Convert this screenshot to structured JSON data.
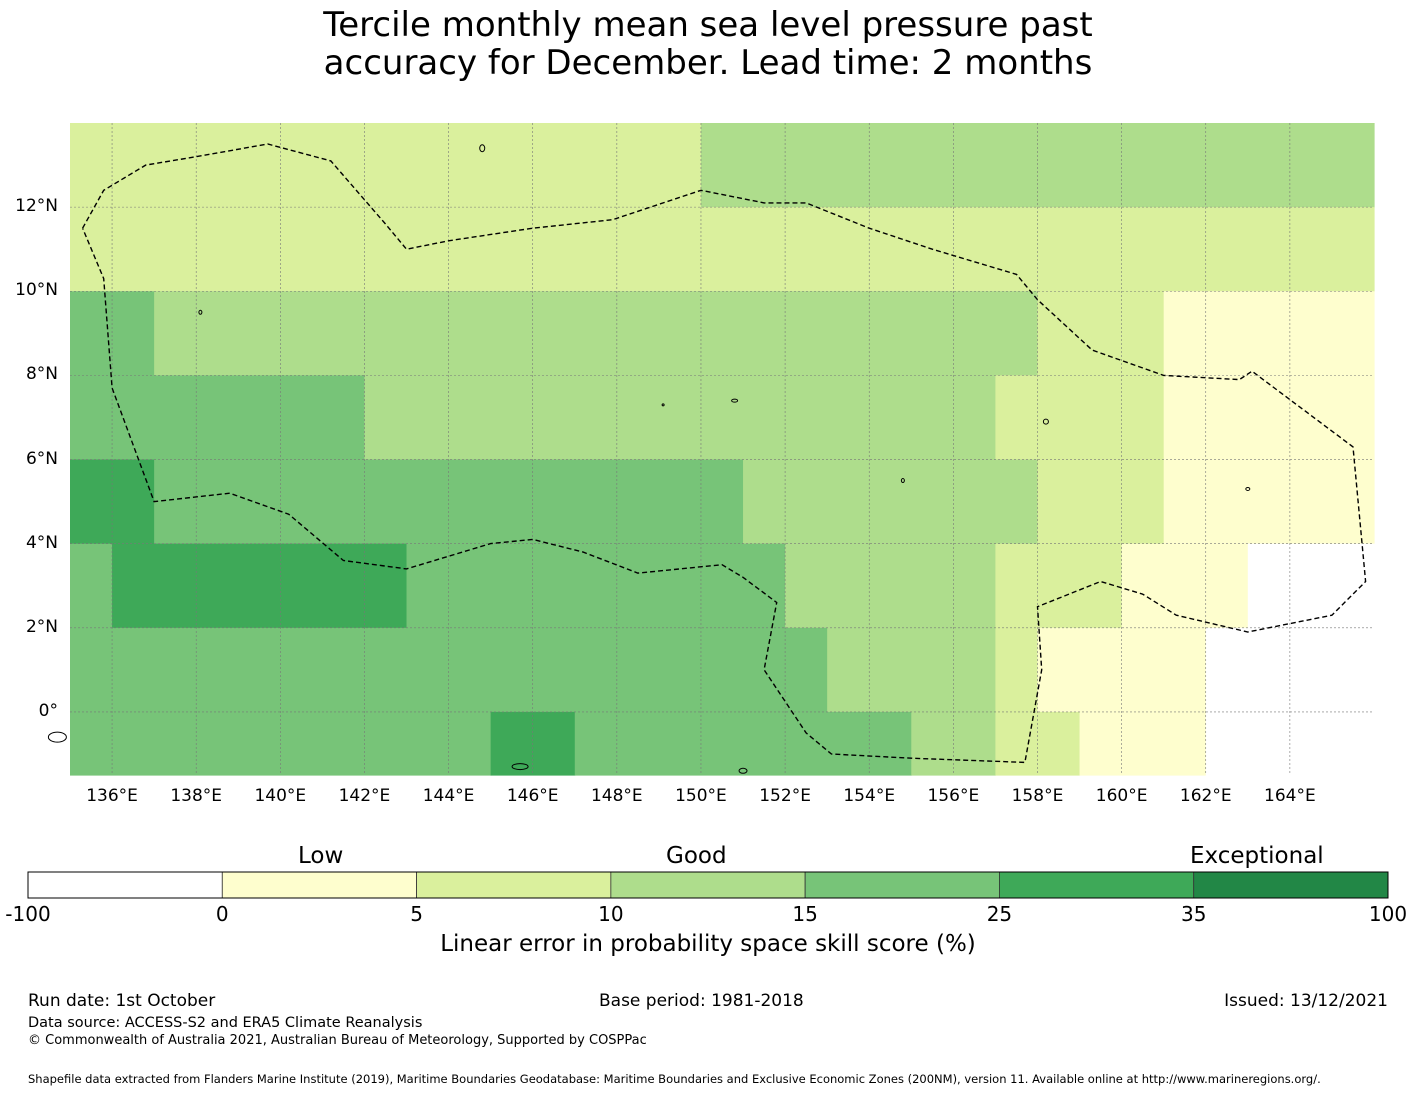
{
  "title": {
    "line1": "Tercile monthly mean sea level pressure past",
    "line2": "accuracy for December. Lead time: 2 months"
  },
  "map": {
    "lon_labels": [
      "136°E",
      "138°E",
      "140°E",
      "142°E",
      "144°E",
      "146°E",
      "148°E",
      "150°E",
      "152°E",
      "154°E",
      "156°E",
      "158°E",
      "160°E",
      "162°E",
      "164°E"
    ],
    "lon_values": [
      136,
      138,
      140,
      142,
      144,
      146,
      148,
      150,
      152,
      154,
      156,
      158,
      160,
      162,
      164
    ],
    "lat_labels": [
      "12°N",
      "10°N",
      "8°N",
      "6°N",
      "4°N",
      "2°N",
      "0°"
    ],
    "lat_values": [
      12,
      10,
      8,
      6,
      4,
      2,
      0
    ],
    "lon_range": [
      135.0,
      166.0
    ],
    "lat_range": [
      -1.5,
      14.0
    ],
    "skill_bands": [
      {
        "lat": [
          12,
          14
        ],
        "lon": [
          135,
          150
        ],
        "score": 7
      },
      {
        "lat": [
          12,
          14
        ],
        "lon": [
          150,
          166
        ],
        "score": 12
      },
      {
        "lat": [
          10,
          12
        ],
        "lon": [
          135,
          158
        ],
        "score": 8
      },
      {
        "lat": [
          10,
          12
        ],
        "lon": [
          158,
          166
        ],
        "score": 7
      },
      {
        "lat": [
          8,
          10
        ],
        "lon": [
          135,
          137
        ],
        "score": 18
      },
      {
        "lat": [
          8,
          10
        ],
        "lon": [
          137,
          158
        ],
        "score": 12
      },
      {
        "lat": [
          8,
          10
        ],
        "lon": [
          158,
          161
        ],
        "score": 7
      },
      {
        "lat": [
          8,
          10
        ],
        "lon": [
          161,
          166
        ],
        "score": 3
      },
      {
        "lat": [
          6,
          8
        ],
        "lon": [
          135,
          142
        ],
        "score": 18
      },
      {
        "lat": [
          6,
          8
        ],
        "lon": [
          142,
          157
        ],
        "score": 12
      },
      {
        "lat": [
          6,
          8
        ],
        "lon": [
          157,
          161
        ],
        "score": 7
      },
      {
        "lat": [
          6,
          8
        ],
        "lon": [
          161,
          166
        ],
        "score": 3
      },
      {
        "lat": [
          4,
          6
        ],
        "lon": [
          135,
          137
        ],
        "score": 28
      },
      {
        "lat": [
          4,
          6
        ],
        "lon": [
          137,
          151
        ],
        "score": 18
      },
      {
        "lat": [
          4,
          6
        ],
        "lon": [
          151,
          158
        ],
        "score": 12
      },
      {
        "lat": [
          4,
          6
        ],
        "lon": [
          158,
          161
        ],
        "score": 7
      },
      {
        "lat": [
          4,
          6
        ],
        "lon": [
          161,
          166
        ],
        "score": 3
      },
      {
        "lat": [
          2,
          4
        ],
        "lon": [
          135,
          136
        ],
        "score": 18
      },
      {
        "lat": [
          2,
          4
        ],
        "lon": [
          136,
          143
        ],
        "score": 28
      },
      {
        "lat": [
          2,
          4
        ],
        "lon": [
          143,
          152
        ],
        "score": 18
      },
      {
        "lat": [
          2,
          4
        ],
        "lon": [
          152,
          157
        ],
        "score": 12
      },
      {
        "lat": [
          2,
          4
        ],
        "lon": [
          157,
          160
        ],
        "score": 7
      },
      {
        "lat": [
          2,
          4
        ],
        "lon": [
          160,
          163
        ],
        "score": 3
      },
      {
        "lat": [
          2,
          4
        ],
        "lon": [
          163,
          166
        ],
        "score": -10
      },
      {
        "lat": [
          0,
          2
        ],
        "lon": [
          135,
          153
        ],
        "score": 18
      },
      {
        "lat": [
          0,
          2
        ],
        "lon": [
          153,
          157
        ],
        "score": 12
      },
      {
        "lat": [
          0,
          2
        ],
        "lon": [
          157,
          158
        ],
        "score": 7
      },
      {
        "lat": [
          0,
          2
        ],
        "lon": [
          158,
          162
        ],
        "score": 3
      },
      {
        "lat": [
          0,
          2
        ],
        "lon": [
          162,
          166
        ],
        "score": -10
      },
      {
        "lat": [
          -1.5,
          0
        ],
        "lon": [
          135,
          145
        ],
        "score": 18
      },
      {
        "lat": [
          -1.5,
          0
        ],
        "lon": [
          145,
          147
        ],
        "score": 28
      },
      {
        "lat": [
          -1.5,
          0
        ],
        "lon": [
          147,
          155
        ],
        "score": 18
      },
      {
        "lat": [
          -1.5,
          0
        ],
        "lon": [
          155,
          157
        ],
        "score": 12
      },
      {
        "lat": [
          -1.5,
          0
        ],
        "lon": [
          157,
          159
        ],
        "score": 7
      },
      {
        "lat": [
          -1.5,
          0
        ],
        "lon": [
          159,
          162
        ],
        "score": 3
      },
      {
        "lat": [
          -1.5,
          0
        ],
        "lon": [
          162,
          166
        ],
        "score": -10
      }
    ],
    "eez_outline": [
      [
        135.3,
        11.5
      ],
      [
        135.8,
        12.4
      ],
      [
        136.8,
        13.0
      ],
      [
        138.0,
        13.2
      ],
      [
        139.7,
        13.5
      ],
      [
        141.2,
        13.1
      ],
      [
        142.5,
        11.6
      ],
      [
        143.0,
        11.0
      ],
      [
        144.0,
        11.2
      ],
      [
        146.0,
        11.5
      ],
      [
        147.9,
        11.7
      ],
      [
        148.5,
        11.9
      ],
      [
        150.0,
        12.4
      ],
      [
        151.5,
        12.1
      ],
      [
        152.5,
        12.1
      ],
      [
        154.0,
        11.5
      ],
      [
        155.5,
        11.0
      ],
      [
        156.5,
        10.7
      ],
      [
        157.5,
        10.4
      ],
      [
        158.0,
        9.8
      ],
      [
        159.3,
        8.6
      ],
      [
        161.0,
        8.0
      ],
      [
        162.8,
        7.9
      ],
      [
        163.1,
        8.1
      ],
      [
        165.5,
        6.3
      ],
      [
        165.8,
        3.1
      ],
      [
        165.0,
        2.3
      ],
      [
        163.0,
        1.9
      ],
      [
        161.3,
        2.3
      ],
      [
        160.5,
        2.8
      ],
      [
        159.5,
        3.1
      ],
      [
        158.0,
        2.5
      ],
      [
        158.1,
        1.0
      ],
      [
        157.7,
        -1.2
      ],
      [
        155.0,
        -1.1
      ],
      [
        153.1,
        -1.0
      ],
      [
        152.5,
        -0.5
      ],
      [
        151.5,
        1.0
      ],
      [
        151.8,
        2.6
      ],
      [
        151.0,
        3.2
      ],
      [
        150.5,
        3.5
      ],
      [
        148.5,
        3.3
      ],
      [
        147.2,
        3.8
      ],
      [
        146.0,
        4.1
      ],
      [
        145.0,
        4.0
      ],
      [
        143.0,
        3.4
      ],
      [
        141.5,
        3.6
      ],
      [
        140.2,
        4.7
      ],
      [
        138.8,
        5.2
      ],
      [
        137.0,
        5.0
      ],
      [
        136.0,
        7.7
      ],
      [
        135.8,
        10.3
      ],
      [
        135.3,
        11.5
      ]
    ]
  },
  "colorbar": {
    "categories": [
      "Low",
      "Good",
      "Exceptional"
    ],
    "ticks": [
      "-100",
      "0",
      "5",
      "10",
      "15",
      "25",
      "35",
      "100"
    ],
    "colors": [
      "#ffffff",
      "#fefece",
      "#daf09d",
      "#aedd8c",
      "#77c478",
      "#3ea958",
      "#228746"
    ],
    "label": "Linear error in probability space skill score (%)"
  },
  "footer": {
    "run_date": "Run date: 1st October",
    "base_period": "Base period: 1981-2018",
    "issued": "Issued: 13/12/2021",
    "data_source": "Data source: ACCESS-S2 and ERA5 Climate Reanalysis",
    "copyright": "© Commonwealth of Australia 2021, Australian Bureau of Meteorology, Supported by COSPPac",
    "shapefile": "Shapefile data extracted from Flanders Marine Institute (2019), Maritime Boundaries Geodatabase: Maritime Boundaries and Exclusive Economic Zones (200NM), version 11. Available online at http://www.marineregions.org/."
  }
}
